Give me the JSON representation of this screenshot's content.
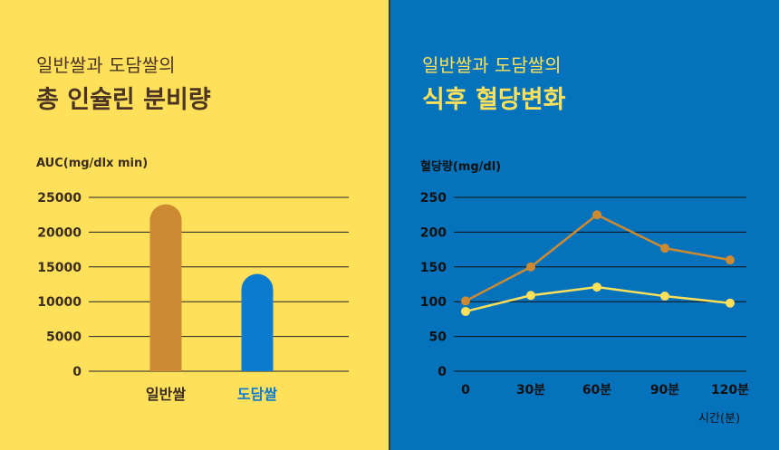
{
  "left_panel": {
    "subtitle": "일반쌀과 도담쌀의",
    "title": "총 인슐린 분비량"
  },
  "right_panel": {
    "subtitle": "일반쌀과 도담쌀의",
    "title": "식후 혈당변화",
    "x_unit": "시간(분)"
  },
  "colors": {
    "left_bg": "#FEE05B",
    "right_bg": "#0573BB",
    "normal_rice": "#CD8A33",
    "dodam_rice": "#0B7BD0",
    "dodam_line": "#FEE05B"
  },
  "chart_data": [
    {
      "type": "bar",
      "title": "총 인슐린 분비량",
      "ylabel": "AUC(mg/dlx min)",
      "xlabel": "",
      "ylim": [
        0,
        25000
      ],
      "yticks": [
        "25000",
        "20000",
        "15000",
        "10000",
        "5000",
        "0"
      ],
      "categories": [
        "일반쌀",
        "도담쌀"
      ],
      "values": [
        24000,
        14000
      ]
    },
    {
      "type": "line",
      "title": "식후 혈당변화",
      "ylabel": "혈당량(mg/dl)",
      "xlabel": "시간(분)",
      "ylim": [
        0,
        250
      ],
      "yticks": [
        "250",
        "200",
        "150",
        "100",
        "50",
        "0"
      ],
      "x": [
        "0",
        "30분",
        "60분",
        "90분",
        "120분"
      ],
      "series": [
        {
          "name": "일반쌀",
          "values": [
            101,
            150,
            225,
            177,
            160
          ]
        },
        {
          "name": "도담쌀",
          "values": [
            86,
            109,
            121,
            108,
            98
          ]
        }
      ]
    }
  ]
}
